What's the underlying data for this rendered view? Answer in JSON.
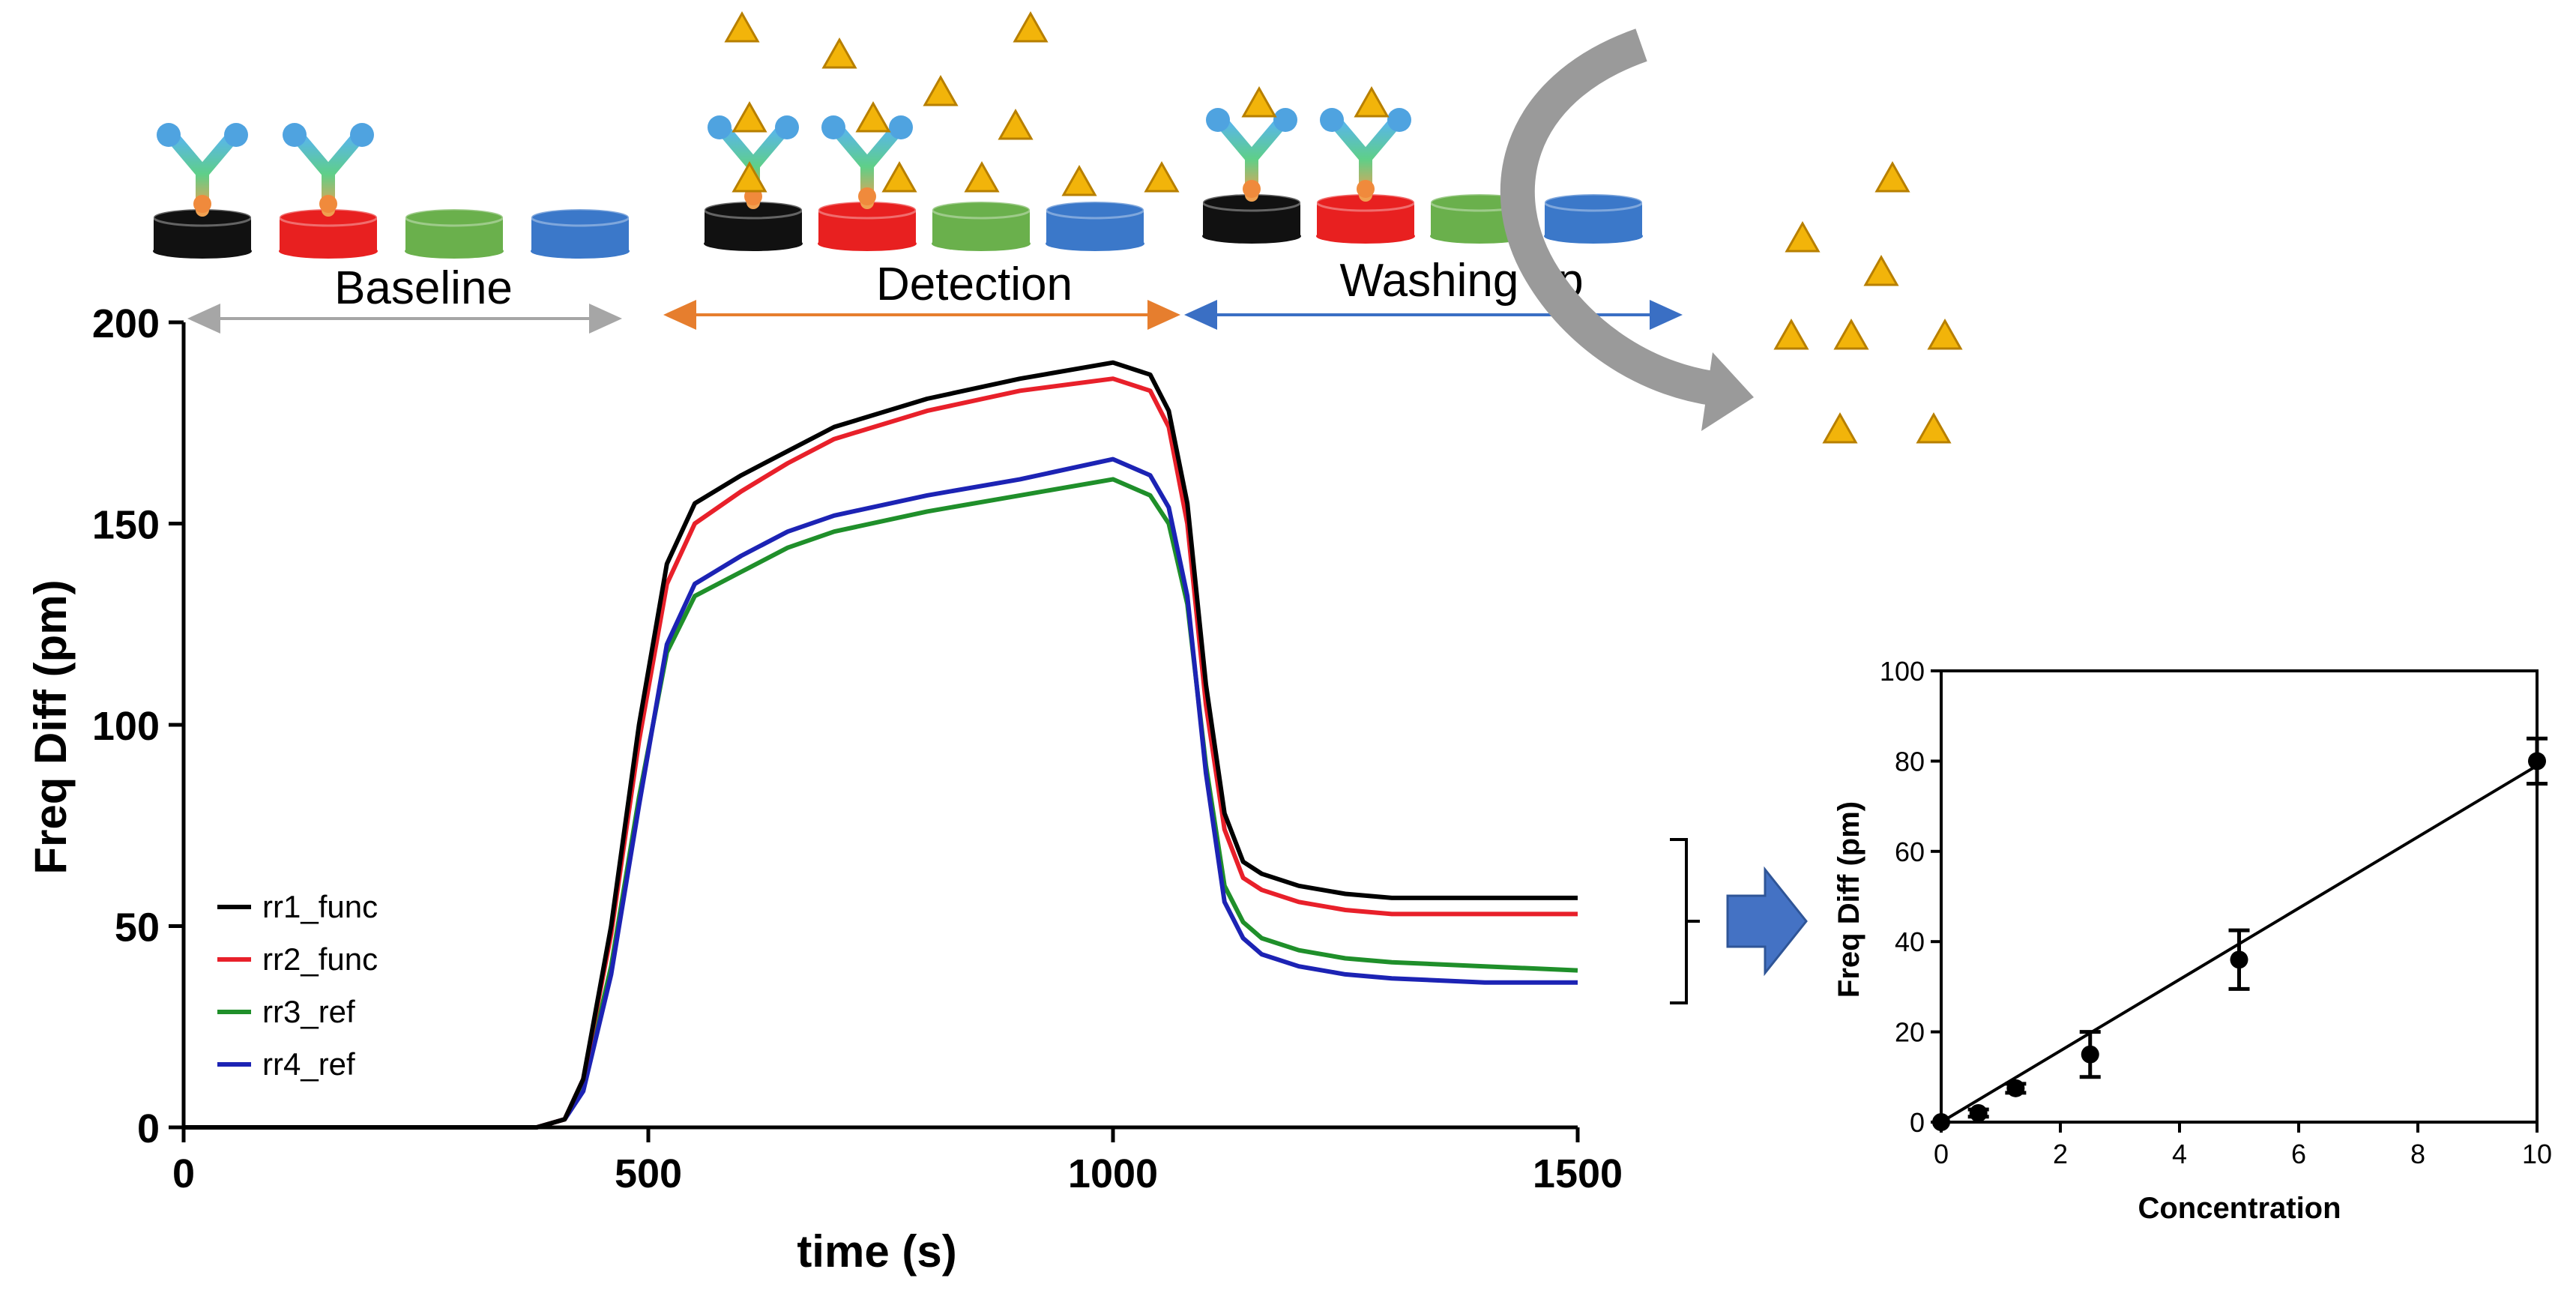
{
  "stages": {
    "baseline": "Baseline",
    "detection": "Detection",
    "washing": "Washing up"
  },
  "colors": {
    "rr1": "#000000",
    "rr2": "#e8202a",
    "rr3": "#1f8f2a",
    "rr4": "#1c23b4",
    "baseline_arrow": "#a6a6a6",
    "detection_arrow": "#e67e2e",
    "washing_arrow": "#3a6fc4",
    "analyte": "#f2b40a",
    "curved_arrow": "#9a9a9a",
    "block_arrow": "#4472c4"
  },
  "chart_data": [
    {
      "type": "line",
      "title": "",
      "xlabel": "time (s)",
      "ylabel": "Freq Diff (pm)",
      "xlim": [
        0,
        1500
      ],
      "ylim": [
        0,
        200
      ],
      "xticks": [
        "0",
        "500",
        "1000",
        "1500"
      ],
      "yticks": [
        "0",
        "50",
        "100",
        "150",
        "200"
      ],
      "legend_position": "bottom-left",
      "series": [
        {
          "name": "rr1_func",
          "x": [
            0,
            380,
            410,
            430,
            460,
            490,
            520,
            550,
            600,
            650,
            700,
            800,
            900,
            1000,
            1040,
            1060,
            1080,
            1100,
            1120,
            1140,
            1160,
            1200,
            1250,
            1300,
            1400,
            1500
          ],
          "values": [
            0,
            0,
            2,
            12,
            50,
            100,
            140,
            155,
            162,
            168,
            174,
            181,
            186,
            190,
            187,
            178,
            155,
            110,
            78,
            66,
            63,
            60,
            58,
            57,
            57,
            57
          ]
        },
        {
          "name": "rr2_func",
          "x": [
            0,
            380,
            410,
            430,
            460,
            490,
            520,
            550,
            600,
            650,
            700,
            800,
            900,
            1000,
            1040,
            1060,
            1080,
            1100,
            1120,
            1140,
            1160,
            1200,
            1250,
            1300,
            1400,
            1500
          ],
          "values": [
            0,
            0,
            2,
            12,
            48,
            96,
            135,
            150,
            158,
            165,
            171,
            178,
            183,
            186,
            183,
            174,
            150,
            105,
            74,
            62,
            59,
            56,
            54,
            53,
            53,
            53
          ]
        },
        {
          "name": "rr3_ref",
          "x": [
            0,
            380,
            410,
            430,
            460,
            490,
            520,
            550,
            600,
            650,
            700,
            800,
            900,
            1000,
            1040,
            1060,
            1080,
            1100,
            1120,
            1140,
            1160,
            1200,
            1250,
            1300,
            1400,
            1500
          ],
          "values": [
            0,
            0,
            2,
            10,
            40,
            82,
            118,
            132,
            138,
            144,
            148,
            153,
            157,
            161,
            157,
            150,
            130,
            90,
            60,
            51,
            47,
            44,
            42,
            41,
            40,
            39
          ]
        },
        {
          "name": "rr4_ref",
          "x": [
            0,
            380,
            410,
            430,
            460,
            490,
            520,
            550,
            600,
            650,
            700,
            800,
            900,
            1000,
            1040,
            1060,
            1080,
            1100,
            1120,
            1140,
            1160,
            1200,
            1250,
            1300,
            1400,
            1500
          ],
          "values": [
            0,
            0,
            2,
            9,
            38,
            80,
            120,
            135,
            142,
            148,
            152,
            157,
            161,
            166,
            162,
            154,
            132,
            88,
            56,
            47,
            43,
            40,
            38,
            37,
            36,
            36
          ]
        }
      ]
    },
    {
      "type": "scatter",
      "title": "",
      "xlabel": "Concentration",
      "ylabel": "Freq Diff (pm)",
      "xlim": [
        0,
        10
      ],
      "ylim": [
        0,
        100
      ],
      "xticks": [
        "0",
        "2",
        "4",
        "6",
        "8",
        "10"
      ],
      "yticks": [
        "0",
        "20",
        "40",
        "60",
        "80",
        "100"
      ],
      "points": [
        {
          "x": 0,
          "y": 0,
          "err": 0
        },
        {
          "x": 0.625,
          "y": 2,
          "err": 0.8
        },
        {
          "x": 1.25,
          "y": 7.5,
          "err": 1
        },
        {
          "x": 2.5,
          "y": 15,
          "err": 5
        },
        {
          "x": 5,
          "y": 36,
          "err": 6.5
        },
        {
          "x": 10,
          "y": 80,
          "err": 5
        }
      ],
      "fit_line": {
        "x": [
          0,
          10
        ],
        "y": [
          0,
          79
        ]
      }
    }
  ]
}
